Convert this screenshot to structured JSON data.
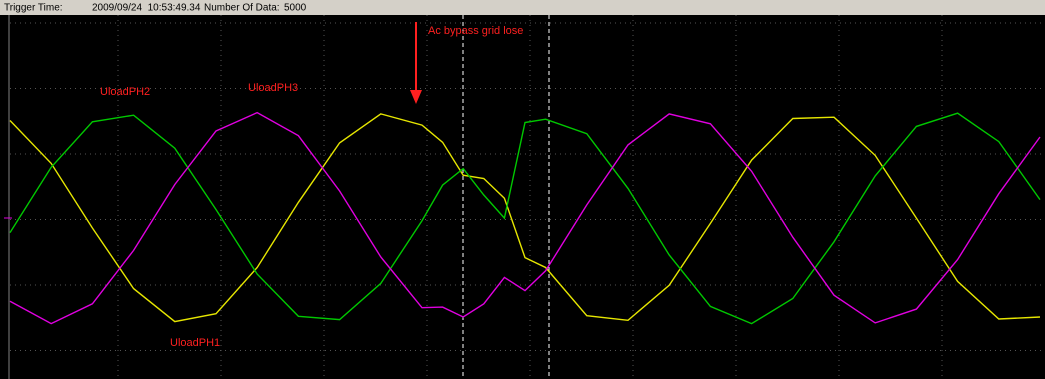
{
  "header": {
    "trigger_label": "Trigger Time:",
    "trigger_time": "2009/09/24  10:53:49.34",
    "data_label": "Number Of Data:",
    "data_count": "5000"
  },
  "chart_data": {
    "type": "line",
    "annotation": "Ac bypass grid lose",
    "x": [
      0,
      200,
      400,
      600,
      800,
      1000,
      1200,
      1400,
      1600,
      1800,
      2000,
      2100,
      2200,
      2300,
      2400,
      2500,
      2600,
      2800,
      3000,
      3200,
      3400,
      3600,
      3800,
      4000,
      4200,
      4400,
      4600,
      4800,
      5000
    ],
    "xlim": [
      0,
      5000
    ],
    "ylim": [
      -2.38,
      3.08
    ],
    "series": [
      {
        "name": "UloadPH1",
        "color": "#e6e600",
        "values": [
          1.48,
          0.83,
          -0.15,
          -1.07,
          -1.57,
          -1.45,
          -0.75,
          0.24,
          1.14,
          1.58,
          1.41,
          1.15,
          0.65,
          0.6,
          0.3,
          -0.6,
          -0.75,
          -1.48,
          -1.55,
          -1.02,
          -0.08,
          0.88,
          1.51,
          1.53,
          0.95,
          0.0,
          -0.96,
          -1.53,
          -1.5
        ]
      },
      {
        "name": "UloadPH2",
        "color": "#00c800",
        "values": [
          -0.22,
          0.77,
          1.46,
          1.56,
          1.06,
          0.13,
          -0.85,
          -1.49,
          -1.54,
          -0.99,
          -0.04,
          0.5,
          0.75,
          0.35,
          0.0,
          1.45,
          1.5,
          1.28,
          0.45,
          -0.56,
          -1.34,
          -1.6,
          -1.22,
          -0.36,
          0.64,
          1.39,
          1.59,
          1.16,
          0.28
        ]
      },
      {
        "name": "UloadPH3",
        "color": "#e000e0",
        "values": [
          -1.26,
          -1.6,
          -1.3,
          -0.49,
          0.51,
          1.32,
          1.6,
          1.25,
          0.41,
          -0.59,
          -1.36,
          -1.35,
          -1.5,
          -1.3,
          -0.9,
          -1.1,
          -0.8,
          0.2,
          1.11,
          1.58,
          1.43,
          0.71,
          -0.29,
          -1.17,
          -1.59,
          -1.38,
          -0.63,
          0.37,
          1.23
        ]
      }
    ]
  }
}
